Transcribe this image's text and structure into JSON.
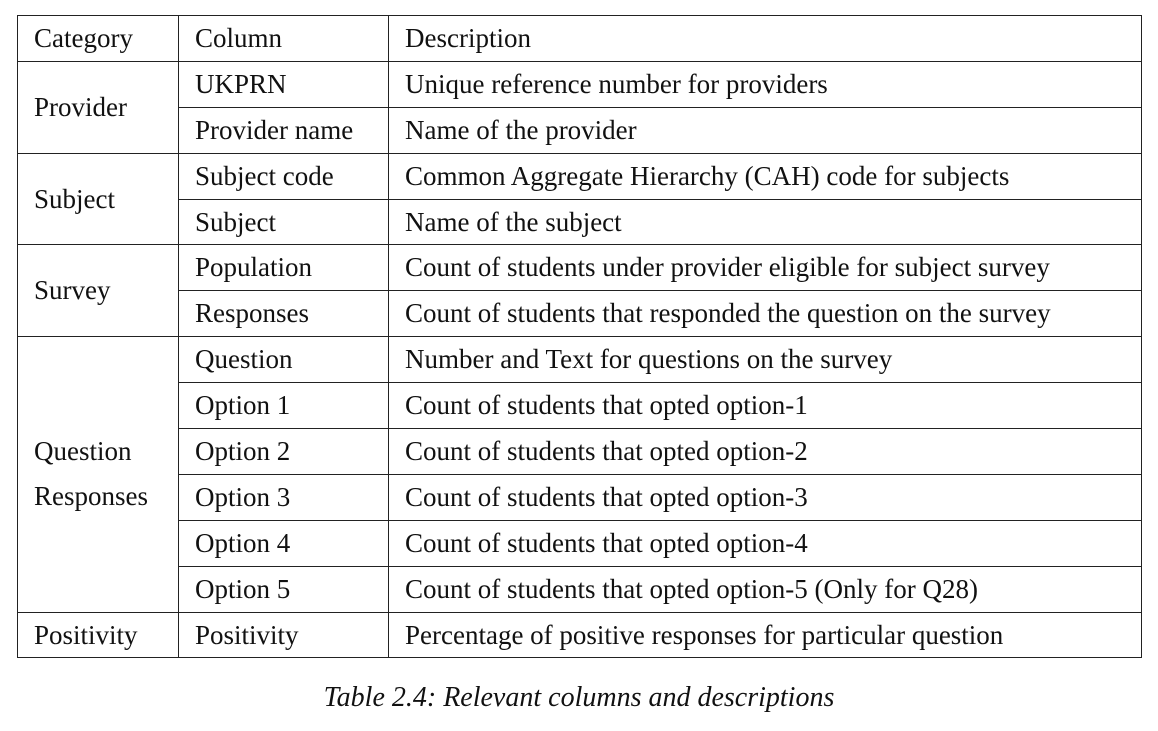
{
  "table": {
    "headers": [
      "Category",
      "Column",
      "Description"
    ],
    "groups": [
      {
        "category": "Provider",
        "rows": [
          {
            "column": "UKPRN",
            "description": "Unique reference number for providers"
          },
          {
            "column": "Provider name",
            "description": "Name of the provider"
          }
        ]
      },
      {
        "category": "Subject",
        "rows": [
          {
            "column": "Subject code",
            "description": "Common Aggregate Hierarchy (CAH) code for subjects"
          },
          {
            "column": "Subject",
            "description": "Name of the subject"
          }
        ]
      },
      {
        "category": "Survey",
        "rows": [
          {
            "column": "Population",
            "description": "Count of students under provider eligible for subject survey"
          },
          {
            "column": "Responses",
            "description": "Count of students that responded the question on the survey"
          }
        ]
      },
      {
        "category_lines": [
          "Question",
          "Responses"
        ],
        "rows": [
          {
            "column": "Question",
            "description": "Number and Text for questions on the survey"
          },
          {
            "column": "Option 1",
            "description": "Count of students that opted option-1"
          },
          {
            "column": "Option 2",
            "description": "Count of students that opted option-2"
          },
          {
            "column": "Option 3",
            "description": "Count of students that opted option-3"
          },
          {
            "column": "Option 4",
            "description": "Count of students that opted option-4"
          },
          {
            "column": "Option 5",
            "description": "Count of students that opted option-5 (Only for Q28)"
          }
        ]
      },
      {
        "category": "Positivity",
        "rows": [
          {
            "column": "Positivity",
            "description": "Percentage of positive responses for particular question"
          }
        ]
      }
    ]
  },
  "caption": "Table 2.4: Relevant columns and descriptions"
}
